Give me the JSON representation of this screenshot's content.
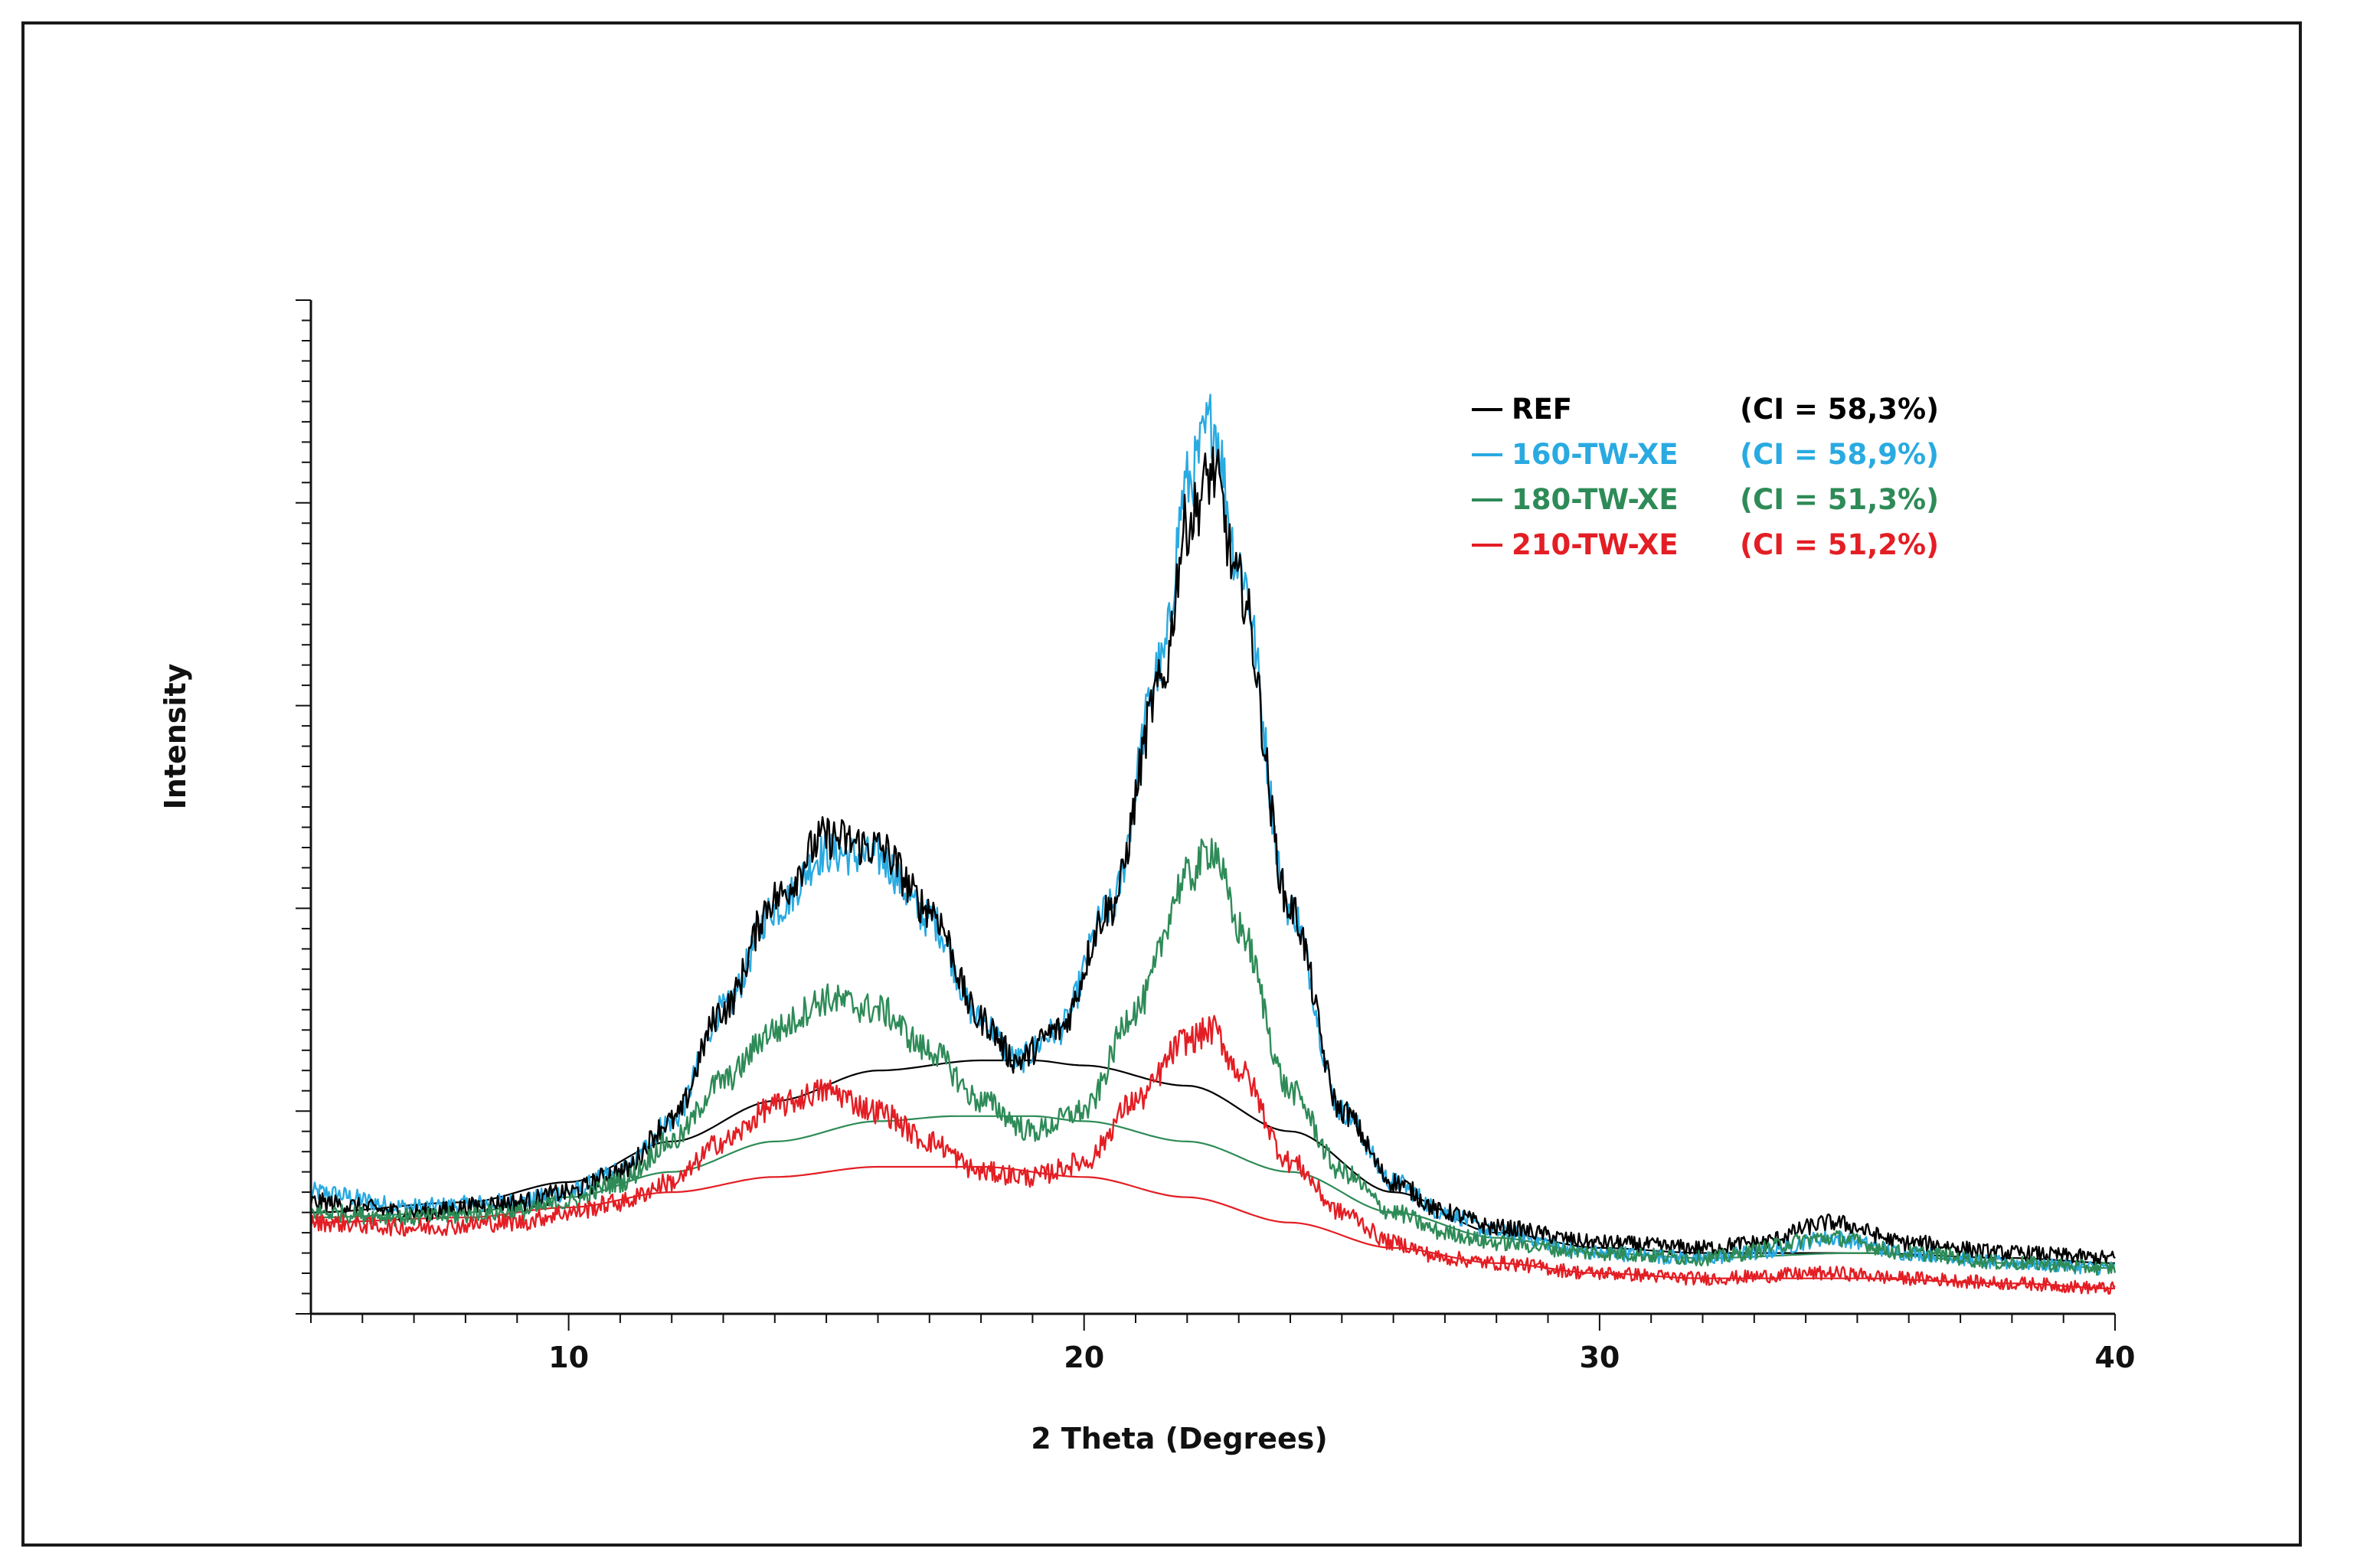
{
  "chart_data": {
    "type": "line",
    "xlabel": "2 Theta (Degrees)",
    "ylabel": "Intensity",
    "xlim": [
      5,
      40
    ],
    "x_ticks": [
      10,
      20,
      30,
      40
    ],
    "y_ticks_labeled": false,
    "ylim": [
      0,
      100
    ],
    "grid": false,
    "legend_position": "top-right",
    "series": [
      {
        "name": "REF",
        "ci_label": "(CI = 58,3%)",
        "color": "#000000",
        "kind": "diffractogram",
        "x": [
          5,
          7,
          9,
          10,
          11,
          12,
          13,
          14,
          15,
          16,
          17,
          18,
          18.7,
          19.5,
          20.5,
          21.5,
          22,
          22.5,
          23,
          24,
          25,
          26,
          27,
          28,
          30,
          32,
          33,
          34.5,
          36,
          38,
          40
        ],
        "y": [
          11,
          10,
          11,
          12,
          14,
          19,
          30,
          41,
          47,
          46,
          40,
          29,
          25,
          28,
          40,
          62,
          78,
          83,
          72,
          40,
          20,
          13,
          10,
          8.5,
          7,
          6.5,
          7,
          9,
          7,
          6,
          5.5
        ]
      },
      {
        "name": "160-TW-XE",
        "ci_label": "(CI = 58,9%)",
        "color": "#29aae1",
        "kind": "diffractogram",
        "x": [
          5,
          7,
          9,
          10,
          11,
          12,
          13,
          14,
          15,
          16,
          17,
          18,
          18.7,
          19.5,
          20.5,
          21.5,
          22,
          22.5,
          23,
          24,
          25,
          26,
          27,
          28,
          30,
          32,
          33,
          34.5,
          36,
          38,
          40
        ],
        "y": [
          12,
          10.5,
          11,
          12,
          14,
          19,
          30,
          40,
          45.5,
          45,
          39,
          29,
          25,
          28,
          40,
          64,
          82,
          88,
          74,
          40,
          20,
          13,
          10,
          8,
          6,
          5.5,
          6,
          7.5,
          6,
          5,
          4.5
        ]
      },
      {
        "name": "180-TW-XE",
        "ci_label": "(CI = 51,3%)",
        "color": "#2e8b57",
        "kind": "diffractogram",
        "x": [
          5,
          7,
          9,
          10,
          11,
          12,
          13,
          14,
          15,
          16,
          17,
          18,
          19,
          20,
          21,
          22,
          22.5,
          23,
          24,
          25,
          26,
          27,
          28,
          30,
          32,
          34.5,
          36,
          38,
          40
        ],
        "y": [
          10,
          9.5,
          10,
          11,
          13,
          17,
          23,
          28,
          31,
          30,
          26,
          21,
          18,
          20,
          30,
          43,
          46,
          38,
          22,
          14,
          10,
          8,
          7,
          6,
          5.5,
          7.5,
          6,
          5,
          4.5
        ]
      },
      {
        "name": "210-TW-XE",
        "ci_label": "(CI = 51,2%)",
        "color": "#e31e24",
        "kind": "diffractogram",
        "x": [
          5,
          7,
          9,
          10,
          11,
          12,
          13,
          14,
          15,
          16,
          17,
          18,
          19,
          20,
          21,
          22,
          22.5,
          23,
          24,
          25,
          26,
          27,
          28,
          30,
          32,
          34.5,
          36,
          38,
          40
        ],
        "y": [
          9,
          8.5,
          9,
          10,
          11,
          13,
          17,
          20.5,
          22,
          20,
          17,
          14,
          13.5,
          15,
          21,
          27,
          28,
          24,
          15,
          10,
          7,
          5.5,
          5,
          4,
          3.5,
          4,
          3.5,
          3,
          2.5
        ]
      },
      {
        "name": "",
        "color": "#000000",
        "kind": "amorphous-fit",
        "x": [
          5,
          8,
          10,
          12,
          14,
          16,
          18,
          19,
          20,
          22,
          24,
          26,
          28,
          30,
          32,
          35,
          38,
          40
        ],
        "y": [
          10,
          11,
          13,
          17,
          21,
          24,
          25,
          25,
          24.5,
          22.5,
          18,
          12,
          8,
          6.5,
          6,
          6,
          5.5,
          5
        ]
      },
      {
        "name": "",
        "color": "#2e8b57",
        "kind": "amorphous-fit",
        "x": [
          5,
          8,
          10,
          12,
          14,
          16,
          17.5,
          19,
          20,
          22,
          24,
          26,
          28,
          30,
          32,
          35,
          38,
          40
        ],
        "y": [
          9.5,
          10,
          11.5,
          14,
          17,
          19,
          19.5,
          19.5,
          19,
          17,
          14,
          10,
          7.5,
          6,
          5.5,
          6,
          5,
          4.5
        ]
      },
      {
        "name": "",
        "color": "#e31e24",
        "kind": "amorphous-fit",
        "x": [
          5,
          8,
          10,
          12,
          14,
          16,
          18,
          20,
          22,
          24,
          26,
          28,
          30,
          32,
          35,
          38,
          40
        ],
        "y": [
          9,
          9.5,
          10.5,
          12,
          13.5,
          14.5,
          14.5,
          13.5,
          11.5,
          9,
          6.5,
          5,
          4,
          3.5,
          3.5,
          3,
          2.5
        ]
      }
    ]
  }
}
